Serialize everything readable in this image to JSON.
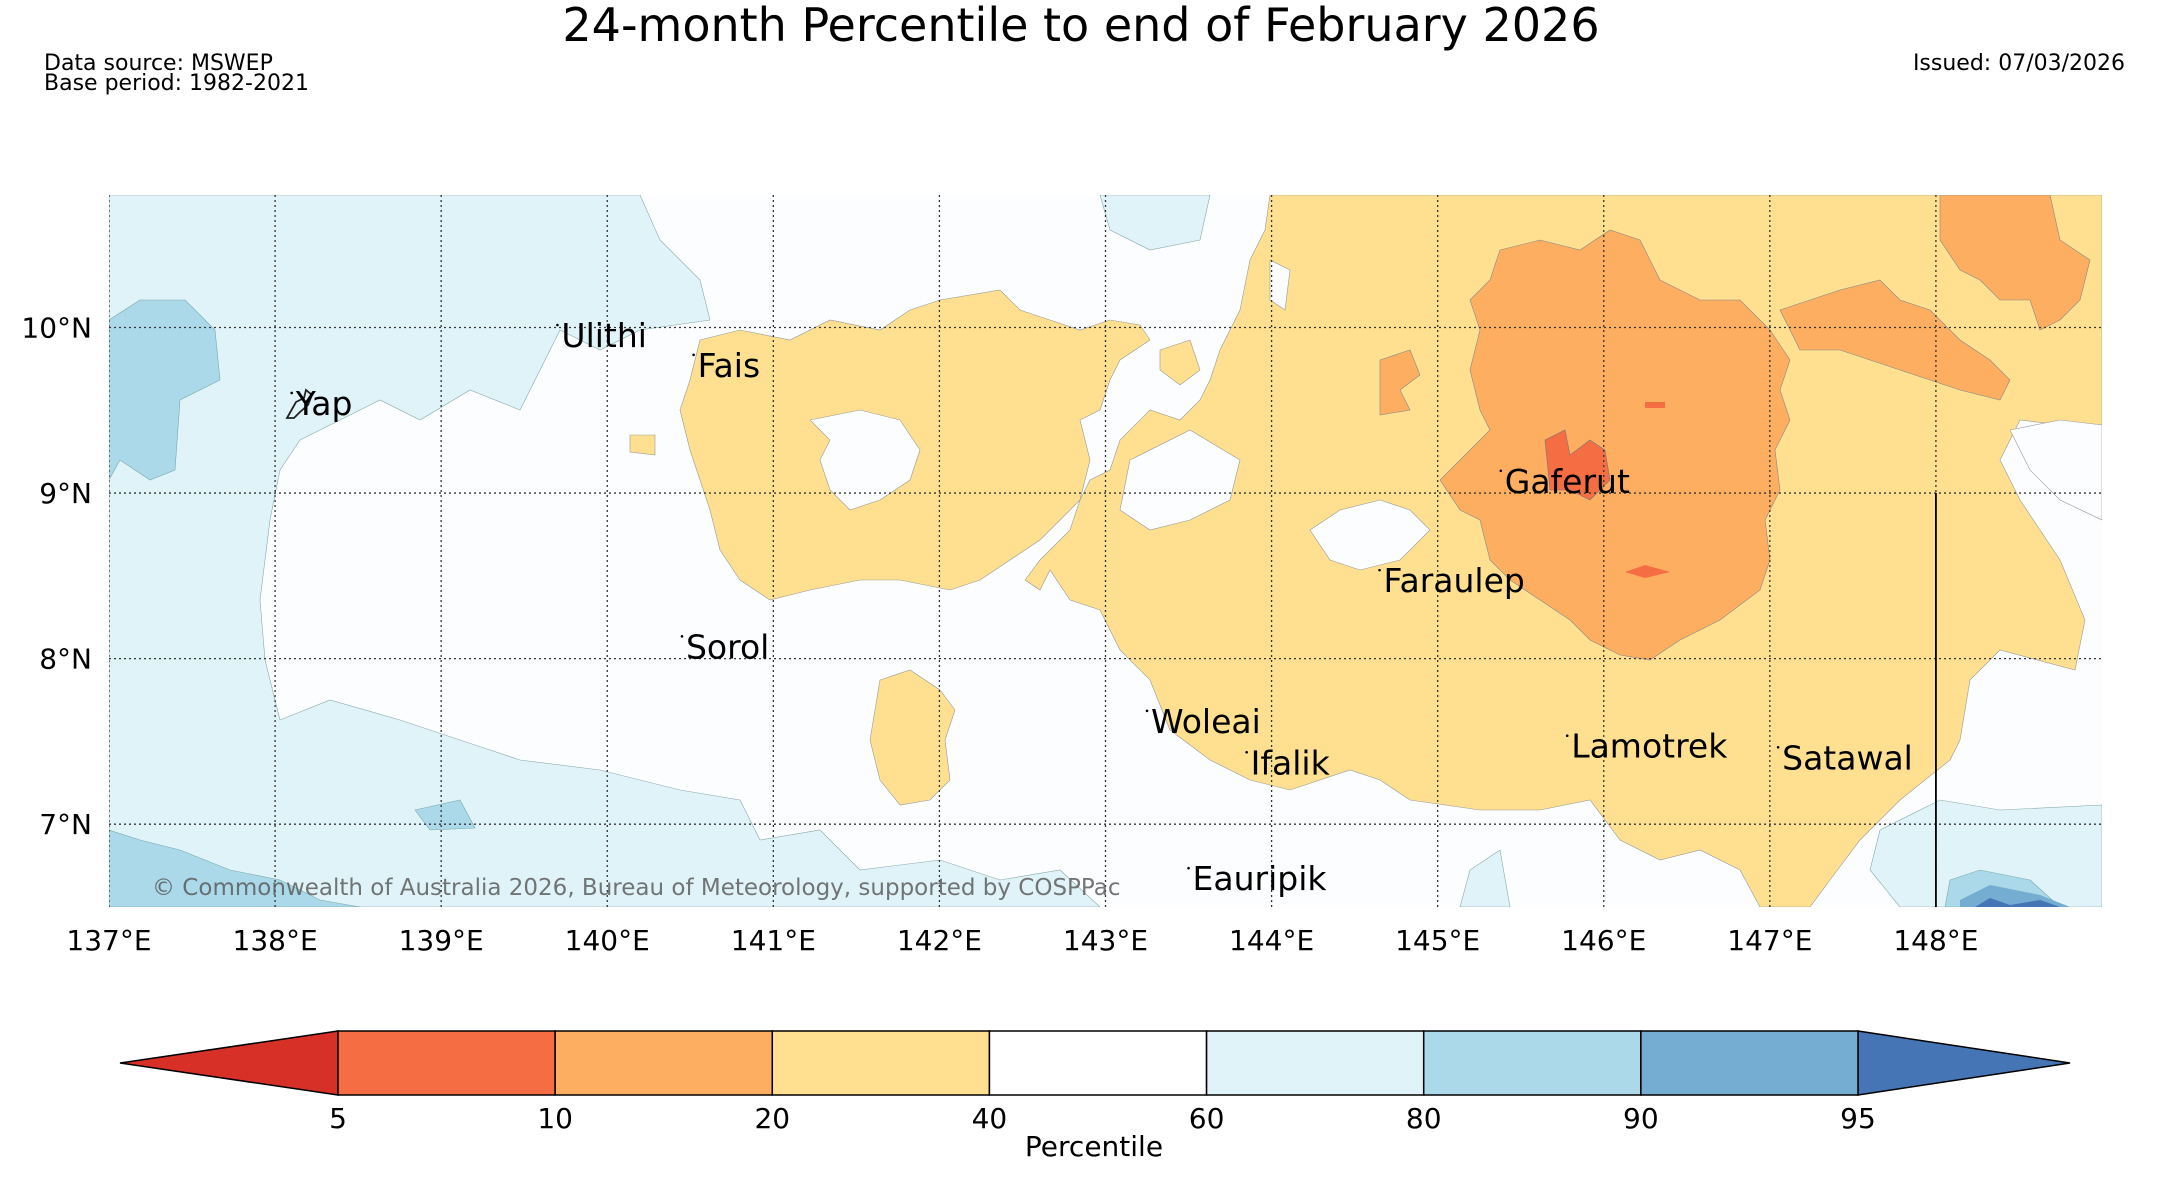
{
  "title": "24-month Percentile to end of February 2026",
  "meta": {
    "data_source": "Data source: MSWEP",
    "base_period": "Base period: 1982-2021",
    "issued": "Issued: 07/03/2026"
  },
  "map": {
    "lon_range": [
      137,
      149
    ],
    "lat_range": [
      6.5,
      10.8
    ],
    "lon_ticks": [
      {
        "value": 137,
        "label": "137°E"
      },
      {
        "value": 138,
        "label": "138°E"
      },
      {
        "value": 139,
        "label": "139°E"
      },
      {
        "value": 140,
        "label": "140°E"
      },
      {
        "value": 141,
        "label": "141°E"
      },
      {
        "value": 142,
        "label": "142°E"
      },
      {
        "value": 143,
        "label": "143°E"
      },
      {
        "value": 144,
        "label": "144°E"
      },
      {
        "value": 145,
        "label": "145°E"
      },
      {
        "value": 146,
        "label": "146°E"
      },
      {
        "value": 147,
        "label": "147°E"
      },
      {
        "value": 148,
        "label": "148°E"
      }
    ],
    "lat_ticks": [
      {
        "value": 10,
        "label": "10°N"
      },
      {
        "value": 9,
        "label": "9°N"
      },
      {
        "value": 8,
        "label": "8°N"
      },
      {
        "value": 7,
        "label": "7°N"
      }
    ],
    "places": [
      {
        "name": "Yap",
        "lon": 138.1,
        "lat": 9.52
      },
      {
        "name": "Ulithi",
        "lon": 139.7,
        "lat": 9.93
      },
      {
        "name": "Fais",
        "lon": 140.52,
        "lat": 9.75
      },
      {
        "name": "Gaferut",
        "lon": 145.38,
        "lat": 9.05
      },
      {
        "name": "Faraulep",
        "lon": 144.65,
        "lat": 8.45
      },
      {
        "name": "Sorol",
        "lon": 140.45,
        "lat": 8.05
      },
      {
        "name": "Woleai",
        "lon": 143.25,
        "lat": 7.6
      },
      {
        "name": "Ifalik",
        "lon": 143.85,
        "lat": 7.35
      },
      {
        "name": "Lamotrek",
        "lon": 145.78,
        "lat": 7.45
      },
      {
        "name": "Satawal",
        "lon": 147.05,
        "lat": 7.38
      },
      {
        "name": "Eauripik",
        "lon": 143.5,
        "lat": 6.65
      }
    ],
    "copyright": "© Commonwealth of Australia 2026, Bureau of Meteorology, supported by COSPPac",
    "boundary_lon": 148.0,
    "boundary_lat_top": 9.0
  },
  "colorbar": {
    "label": "Percentile",
    "bins": [
      {
        "from": 0,
        "to": 5,
        "color": "#d73027"
      },
      {
        "from": 5,
        "to": 10,
        "color": "#f46d43"
      },
      {
        "from": 10,
        "to": 20,
        "color": "#fdae61"
      },
      {
        "from": 20,
        "to": 40,
        "color": "#fee090"
      },
      {
        "from": 40,
        "to": 60,
        "color": "#ffffff"
      },
      {
        "from": 60,
        "to": 80,
        "color": "#e0f3f8"
      },
      {
        "from": 80,
        "to": 90,
        "color": "#abd9e9"
      },
      {
        "from": 90,
        "to": 95,
        "color": "#74add1"
      },
      {
        "from": 95,
        "to": 100,
        "color": "#4575b4"
      }
    ],
    "ticks": [
      "5",
      "10",
      "20",
      "40",
      "60",
      "80",
      "90",
      "95"
    ]
  },
  "colors": {
    "land_outline": "#222222",
    "grid": "#333333",
    "background_white_band": "#fbfdfe"
  }
}
